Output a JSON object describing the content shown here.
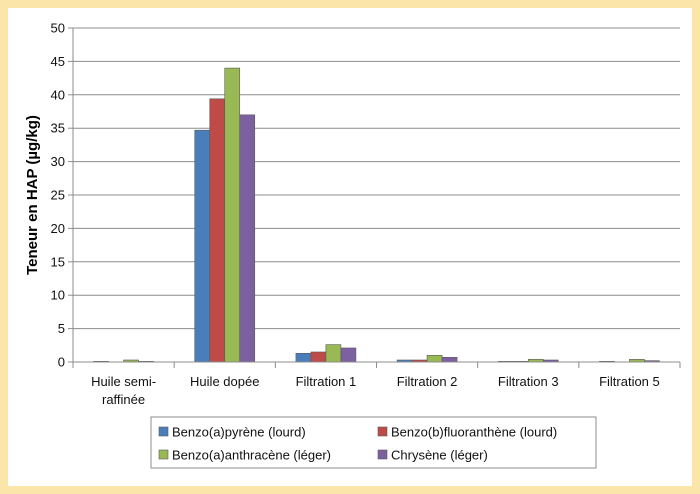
{
  "chart_data": {
    "type": "bar",
    "ylabel": "Teneur en HAP (µg/kg)",
    "ylim": [
      0,
      50
    ],
    "yticks": [
      0,
      5,
      10,
      15,
      20,
      25,
      30,
      35,
      40,
      45,
      50
    ],
    "categories": [
      [
        "Huile semi-",
        "raffinée"
      ],
      [
        "Huile dopée"
      ],
      [
        "Filtration 1"
      ],
      [
        "Filtration 2"
      ],
      [
        "Filtration 3"
      ],
      [
        "Filtration 5"
      ]
    ],
    "series": [
      {
        "name": "Benzo(a)pyrène (lourd)",
        "color": "#4a7ebb",
        "values": [
          0.1,
          34.7,
          1.3,
          0.3,
          0.1,
          0.1
        ]
      },
      {
        "name": "Benzo(b)fluoranthène (lourd)",
        "color": "#be4b48",
        "values": [
          0.0,
          39.4,
          1.5,
          0.3,
          0.1,
          0.0
        ]
      },
      {
        "name": "Benzo(a)anthracène (léger)",
        "color": "#98b954",
        "values": [
          0.3,
          44.0,
          2.6,
          1.0,
          0.4,
          0.4
        ]
      },
      {
        "name": "Chrysène (léger)",
        "color": "#7d60a0",
        "values": [
          0.1,
          37.0,
          2.1,
          0.7,
          0.3,
          0.2
        ]
      }
    ],
    "grid": true,
    "legend_position": "bottom"
  }
}
